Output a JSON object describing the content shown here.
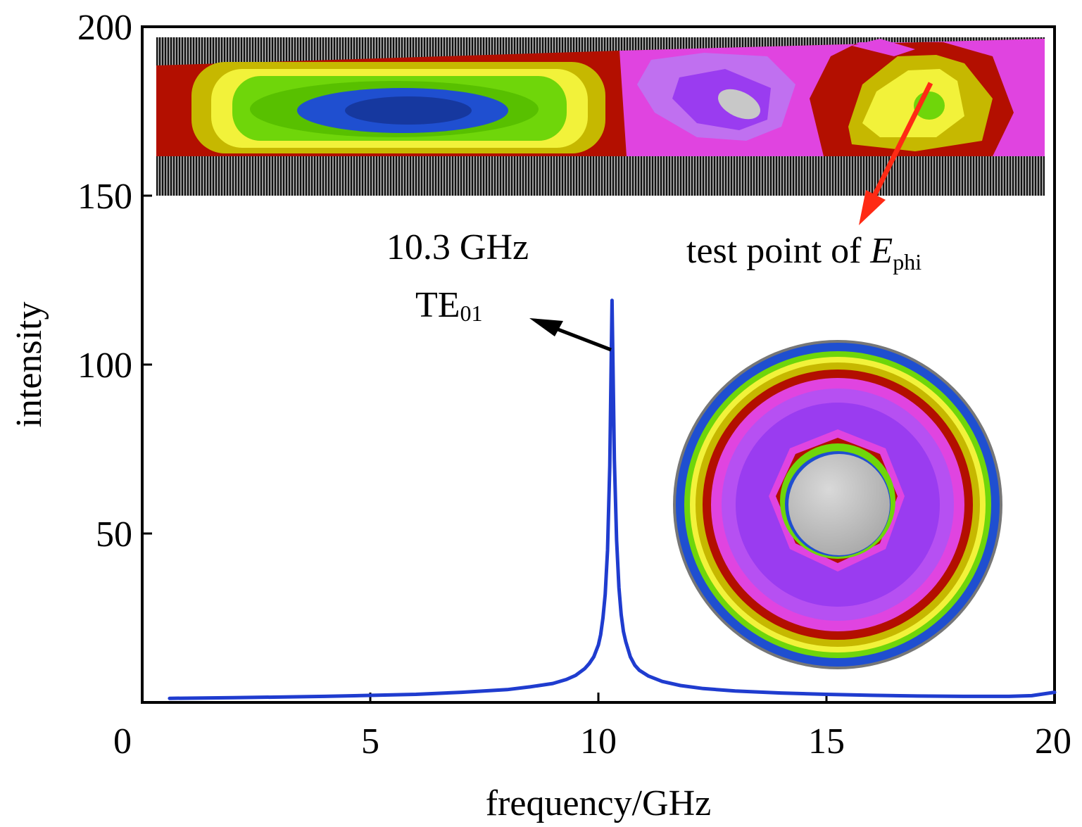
{
  "chart_data": {
    "type": "line",
    "xlabel": "frequency/GHz",
    "ylabel": "intensity",
    "xlim": [
      0,
      20
    ],
    "ylim": [
      0,
      200
    ],
    "xticks": [
      0,
      5,
      10,
      15,
      20
    ],
    "xtick_labels": [
      "0",
      "5",
      "10",
      "15",
      "20"
    ],
    "yticks": [
      50,
      100,
      150,
      200
    ],
    "ytick_labels": [
      "50",
      "100",
      "150",
      "200"
    ],
    "grid": false,
    "legend": "none",
    "series": [
      {
        "color": "#1f3ccf",
        "x": [
          0.6,
          2,
          4,
          6,
          7,
          8,
          8.5,
          9,
          9.3,
          9.5,
          9.7,
          9.8,
          9.9,
          10.0,
          10.05,
          10.1,
          10.15,
          10.2,
          10.25,
          10.3,
          10.35,
          10.4,
          10.45,
          10.5,
          10.55,
          10.6,
          10.7,
          10.8,
          10.9,
          11.1,
          11.4,
          11.8,
          12.3,
          13,
          14,
          15,
          16,
          17,
          18,
          19,
          19.5,
          20
        ],
        "values": [
          1.2,
          1.4,
          1.8,
          2.4,
          3.0,
          3.8,
          4.6,
          5.6,
          6.8,
          8.0,
          10.0,
          11.5,
          13.5,
          17.0,
          20.0,
          25.0,
          32.0,
          45.0,
          70.0,
          119.0,
          72.0,
          48.0,
          34.0,
          26.0,
          21.0,
          18.0,
          13.5,
          11.0,
          9.5,
          7.8,
          6.2,
          5.0,
          4.1,
          3.4,
          2.8,
          2.4,
          2.1,
          1.9,
          1.8,
          1.8,
          2.0,
          3.0
        ]
      }
    ],
    "annotations": {
      "peak_freq": "10.3 GHz",
      "mode_main": "TE",
      "mode_sub": "01",
      "test_point_main": "test point of ",
      "test_point_var": "E",
      "test_point_sub": "phi"
    }
  },
  "colors": {
    "line": "#1f3ccf",
    "arrow_black": "#000000",
    "arrow_red": "#ff2a14",
    "field_red": "#b30f00",
    "field_olive": "#c6b800",
    "field_yellow": "#f2f23a",
    "field_green": "#6fd60a",
    "field_blue": "#1f4fd0",
    "field_darkblue": "#16389f",
    "field_magenta": "#e044e0",
    "field_violet": "#9a3cf0",
    "field_gray": "#c8c8c8"
  }
}
